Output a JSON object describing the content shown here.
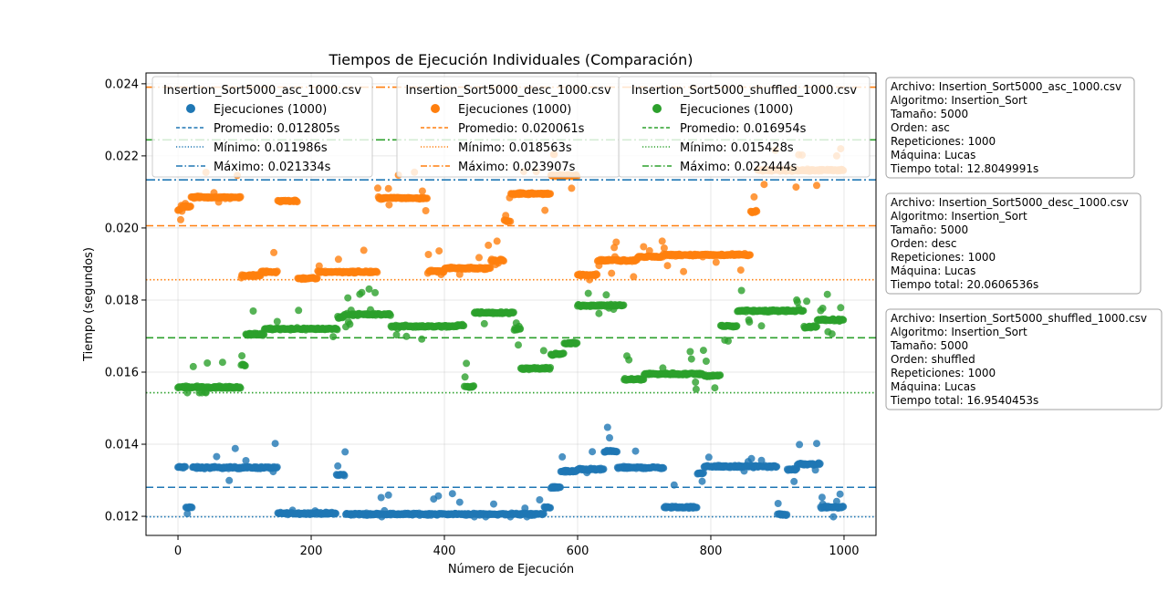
{
  "chart_data": {
    "type": "scatter",
    "title": "Tiempos de Ejecución Individuales (Comparación)",
    "xlabel": "Número de Ejecución",
    "ylabel": "Tiempo (segundos)",
    "xlim": [
      -48,
      1048
    ],
    "ylim": [
      0.01147,
      0.0243
    ],
    "xticks": [
      0,
      200,
      400,
      600,
      800,
      1000
    ],
    "yticks": [
      0.012,
      0.014,
      0.016,
      0.018,
      0.02,
      0.022,
      0.024
    ],
    "ytick_labels": [
      "0.012",
      "0.014",
      "0.016",
      "0.018",
      "0.020",
      "0.022",
      "0.024"
    ],
    "grid": true,
    "n_points": 1000,
    "series": [
      {
        "name": "Insertion_Sort5000_asc_1000.csv",
        "color": "#1f77b4",
        "marker_label": "Ejecuciones (1000)",
        "mean": 0.012805,
        "min": 0.011986,
        "max": 0.021334,
        "mean_label": "Promedio: 0.012805s",
        "min_label": "Mínimo: 0.011986s",
        "max_label": "Máximo: 0.021334s",
        "segments": [
          [
            0,
            12,
            0.01336
          ],
          [
            12,
            22,
            0.01225
          ],
          [
            22,
            110,
            0.01335
          ],
          [
            110,
            150,
            0.01335
          ],
          [
            150,
            238,
            0.01208
          ],
          [
            238,
            252,
            0.01315
          ],
          [
            252,
            550,
            0.01206
          ],
          [
            550,
            560,
            0.01225
          ],
          [
            560,
            575,
            0.0128
          ],
          [
            575,
            600,
            0.01325
          ],
          [
            600,
            640,
            0.0133
          ],
          [
            640,
            660,
            0.0138
          ],
          [
            660,
            730,
            0.01335
          ],
          [
            730,
            780,
            0.01225
          ],
          [
            780,
            790,
            0.0132
          ],
          [
            790,
            870,
            0.01338
          ],
          [
            870,
            900,
            0.01338
          ],
          [
            900,
            915,
            0.01205
          ],
          [
            915,
            930,
            0.0133
          ],
          [
            930,
            965,
            0.01345
          ],
          [
            965,
            1000,
            0.01225
          ]
        ]
      },
      {
        "name": "Insertion_Sort5000_desc_1000.csv",
        "color": "#ff7f0e",
        "marker_label": "Ejecuciones (1000)",
        "mean": 0.020061,
        "min": 0.018563,
        "max": 0.023907,
        "mean_label": "Promedio: 0.020061s",
        "min_label": "Mínimo: 0.018563s",
        "max_label": "Máximo: 0.023907s",
        "segments": [
          [
            0,
            5,
            0.0205
          ],
          [
            5,
            20,
            0.0206
          ],
          [
            20,
            95,
            0.02085
          ],
          [
            95,
            125,
            0.01868
          ],
          [
            125,
            150,
            0.01878
          ],
          [
            150,
            180,
            0.02075
          ],
          [
            180,
            210,
            0.0186
          ],
          [
            210,
            300,
            0.01878
          ],
          [
            300,
            375,
            0.02083
          ],
          [
            375,
            400,
            0.0188
          ],
          [
            400,
            470,
            0.01888
          ],
          [
            470,
            490,
            0.0191
          ],
          [
            490,
            500,
            0.0202
          ],
          [
            500,
            560,
            0.02095
          ],
          [
            560,
            600,
            0.02145
          ],
          [
            600,
            630,
            0.0187
          ],
          [
            630,
            690,
            0.0191
          ],
          [
            690,
            730,
            0.0192
          ],
          [
            730,
            860,
            0.01925
          ],
          [
            860,
            870,
            0.02045
          ],
          [
            870,
            1000,
            0.0216
          ]
        ]
      },
      {
        "name": "Insertion_Sort5000_shuffled_1000.csv",
        "color": "#2ca02c",
        "marker_label": "Ejecuciones (1000)",
        "mean": 0.016954,
        "min": 0.015428,
        "max": 0.022444,
        "mean_label": "Promedio: 0.016954s",
        "min_label": "Mínimo: 0.015428s",
        "max_label": "Máximo: 0.022444s",
        "segments": [
          [
            0,
            95,
            0.01558
          ],
          [
            95,
            102,
            0.0162
          ],
          [
            102,
            130,
            0.01705
          ],
          [
            130,
            240,
            0.0172
          ],
          [
            240,
            250,
            0.01753
          ],
          [
            250,
            320,
            0.0176
          ],
          [
            320,
            420,
            0.01727
          ],
          [
            420,
            430,
            0.0173
          ],
          [
            430,
            445,
            0.0156
          ],
          [
            445,
            505,
            0.01765
          ],
          [
            505,
            515,
            0.0172
          ],
          [
            515,
            560,
            0.0161
          ],
          [
            560,
            580,
            0.0165
          ],
          [
            580,
            600,
            0.0168
          ],
          [
            600,
            670,
            0.01785
          ],
          [
            670,
            700,
            0.0158
          ],
          [
            700,
            790,
            0.01595
          ],
          [
            790,
            815,
            0.0159
          ],
          [
            815,
            840,
            0.01728
          ],
          [
            840,
            940,
            0.0177
          ],
          [
            940,
            960,
            0.01725
          ],
          [
            960,
            1000,
            0.01745
          ]
        ]
      }
    ],
    "legend_placement": "top"
  },
  "info_boxes": [
    {
      "lines": [
        "Archivo: Insertion_Sort5000_asc_1000.csv",
        "Algoritmo: Insertion_Sort",
        "Tamaño: 5000",
        "Orden: asc",
        "Repeticiones: 1000",
        "Máquina: Lucas",
        "Tiempo total: 12.8049991s"
      ]
    },
    {
      "lines": [
        "Archivo: Insertion_Sort5000_desc_1000.csv",
        "Algoritmo: Insertion_Sort",
        "Tamaño: 5000",
        "Orden: desc",
        "Repeticiones: 1000",
        "Máquina: Lucas",
        "Tiempo total: 20.0606536s"
      ]
    },
    {
      "lines": [
        "Archivo: Insertion_Sort5000_shuffled_1000.csv",
        "Algoritmo: Insertion_Sort",
        "Tamaño: 5000",
        "Orden: shuffled",
        "Repeticiones: 1000",
        "Máquina: Lucas",
        "Tiempo total: 16.9540453s"
      ]
    }
  ]
}
